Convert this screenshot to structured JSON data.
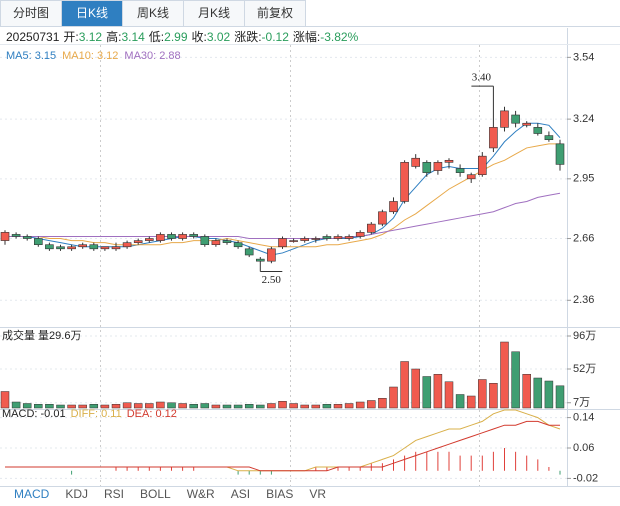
{
  "tabs": [
    "分时图",
    "日K线",
    "周K线",
    "月K线",
    "前复权"
  ],
  "active_tab": 1,
  "quote": {
    "date": "20250731",
    "value_color": "#2a9d5c",
    "fields": [
      {
        "label": "开:",
        "value": "3.12"
      },
      {
        "label": "高:",
        "value": "3.14"
      },
      {
        "label": "低:",
        "value": "2.99"
      },
      {
        "label": "收:",
        "value": "3.02"
      },
      {
        "label": "涨跌:",
        "value": "-0.12"
      },
      {
        "label": "涨幅:",
        "value": "-3.82%"
      }
    ]
  },
  "indicator_tabs": [
    "MACD",
    "KDJ",
    "RSI",
    "BOLL",
    "W&R",
    "ASI",
    "BIAS",
    "VR"
  ],
  "active_indicator": 0,
  "chart_data": [
    {
      "type": "candlestick",
      "up_color": "#f05b4f",
      "down_color": "#3f9e72",
      "ylim": [
        2.24,
        3.6
      ],
      "yticks": [
        3.54,
        3.24,
        2.95,
        2.66,
        2.36
      ],
      "open": [
        2.65,
        2.68,
        2.67,
        2.66,
        2.63,
        2.62,
        2.61,
        2.62,
        2.63,
        2.61,
        2.61,
        2.62,
        2.64,
        2.65,
        2.65,
        2.68,
        2.66,
        2.68,
        2.67,
        2.63,
        2.65,
        2.64,
        2.61,
        2.56,
        2.55,
        2.62,
        2.65,
        2.65,
        2.66,
        2.67,
        2.66,
        2.66,
        2.67,
        2.69,
        2.73,
        2.79,
        2.84,
        3.01,
        3.03,
        2.99,
        3.03,
        3.0,
        2.95,
        2.97,
        3.1,
        3.2,
        3.26,
        3.21,
        3.2,
        3.16,
        3.12
      ],
      "high": [
        2.7,
        2.69,
        2.68,
        2.67,
        2.64,
        2.63,
        2.63,
        2.64,
        2.64,
        2.62,
        2.64,
        2.65,
        2.66,
        2.67,
        2.69,
        2.69,
        2.69,
        2.69,
        2.68,
        2.66,
        2.66,
        2.65,
        2.62,
        2.57,
        2.62,
        2.67,
        2.66,
        2.67,
        2.67,
        2.68,
        2.68,
        2.68,
        2.7,
        2.74,
        2.8,
        2.86,
        3.04,
        3.07,
        3.04,
        3.04,
        3.05,
        3.02,
        2.98,
        3.08,
        3.4,
        3.3,
        3.28,
        3.23,
        3.22,
        3.18,
        3.14
      ],
      "low": [
        2.63,
        2.66,
        2.65,
        2.62,
        2.6,
        2.6,
        2.6,
        2.61,
        2.6,
        2.6,
        2.6,
        2.61,
        2.63,
        2.64,
        2.64,
        2.65,
        2.65,
        2.66,
        2.62,
        2.62,
        2.63,
        2.61,
        2.57,
        2.5,
        2.54,
        2.61,
        2.64,
        2.64,
        2.64,
        2.65,
        2.65,
        2.65,
        2.66,
        2.68,
        2.72,
        2.78,
        2.83,
        3.0,
        2.96,
        2.97,
        3.0,
        2.96,
        2.93,
        2.96,
        3.08,
        3.18,
        3.2,
        3.2,
        3.16,
        3.13,
        2.99
      ],
      "close": [
        2.69,
        2.67,
        2.66,
        2.63,
        2.61,
        2.61,
        2.62,
        2.63,
        2.61,
        2.62,
        2.62,
        2.64,
        2.65,
        2.66,
        2.68,
        2.66,
        2.68,
        2.67,
        2.63,
        2.65,
        2.64,
        2.62,
        2.58,
        2.55,
        2.61,
        2.66,
        2.65,
        2.66,
        2.66,
        2.66,
        2.67,
        2.67,
        2.69,
        2.73,
        2.79,
        2.84,
        3.03,
        3.05,
        2.98,
        3.03,
        3.04,
        2.98,
        2.97,
        3.06,
        3.2,
        3.28,
        3.22,
        3.22,
        3.17,
        3.14,
        3.02
      ],
      "high_labels": [
        null,
        null,
        null,
        null,
        null,
        null,
        null,
        null,
        null,
        null,
        null,
        null,
        null,
        null,
        null,
        null,
        null,
        null,
        null,
        null,
        null,
        null,
        null,
        null,
        null,
        null,
        null,
        null,
        null,
        null,
        null,
        null,
        null,
        null,
        null,
        null,
        null,
        null,
        null,
        null,
        null,
        null,
        null,
        null,
        "3.40",
        null,
        null,
        null,
        null,
        null,
        null
      ],
      "low_labels": [
        null,
        null,
        null,
        null,
        null,
        null,
        null,
        null,
        null,
        null,
        null,
        null,
        null,
        null,
        null,
        null,
        null,
        null,
        null,
        null,
        null,
        null,
        null,
        "2.50",
        null,
        null,
        null,
        null,
        null,
        null,
        null,
        null,
        null,
        null,
        null,
        null,
        null,
        null,
        null,
        null,
        null,
        null,
        null,
        null,
        null,
        null,
        null,
        null,
        null,
        null,
        null
      ],
      "series": [
        {
          "label": "MA5: 3.15",
          "color": "#2f7fc1",
          "values": [
            2.67,
            2.67,
            2.67,
            2.66,
            2.65,
            2.64,
            2.63,
            2.62,
            2.62,
            2.62,
            2.62,
            2.62,
            2.63,
            2.64,
            2.65,
            2.66,
            2.67,
            2.67,
            2.66,
            2.66,
            2.65,
            2.64,
            2.62,
            2.6,
            2.58,
            2.59,
            2.61,
            2.63,
            2.65,
            2.66,
            2.66,
            2.66,
            2.67,
            2.68,
            2.71,
            2.76,
            2.85,
            2.91,
            2.97,
            3.0,
            3.01,
            3.0,
            3.0,
            3.0,
            3.06,
            3.13,
            3.18,
            3.22,
            3.22,
            3.21,
            3.15
          ]
        },
        {
          "label": "MA10: 3.12",
          "color": "#e8a94a",
          "values": [
            2.67,
            2.67,
            2.67,
            2.67,
            2.66,
            2.66,
            2.65,
            2.65,
            2.64,
            2.64,
            2.63,
            2.63,
            2.63,
            2.63,
            2.63,
            2.64,
            2.64,
            2.65,
            2.65,
            2.65,
            2.66,
            2.65,
            2.64,
            2.63,
            2.62,
            2.62,
            2.62,
            2.62,
            2.62,
            2.63,
            2.63,
            2.64,
            2.65,
            2.66,
            2.68,
            2.71,
            2.75,
            2.78,
            2.82,
            2.86,
            2.9,
            2.93,
            2.96,
            2.99,
            3.02,
            3.04,
            3.07,
            3.1,
            3.11,
            3.12,
            3.12
          ]
        },
        {
          "label": "MA30: 2.88",
          "color": "#a070c0",
          "values": [
            2.67,
            2.67,
            2.67,
            2.67,
            2.67,
            2.67,
            2.67,
            2.67,
            2.67,
            2.67,
            2.67,
            2.67,
            2.67,
            2.67,
            2.67,
            2.67,
            2.67,
            2.67,
            2.67,
            2.67,
            2.67,
            2.67,
            2.66,
            2.66,
            2.66,
            2.66,
            2.66,
            2.66,
            2.66,
            2.66,
            2.66,
            2.67,
            2.67,
            2.68,
            2.69,
            2.7,
            2.71,
            2.72,
            2.73,
            2.74,
            2.75,
            2.76,
            2.77,
            2.78,
            2.79,
            2.81,
            2.83,
            2.84,
            2.86,
            2.87,
            2.88
          ]
        }
      ]
    },
    {
      "type": "bar",
      "title": "成交量 量29.6万",
      "ylim": [
        0,
        104
      ],
      "yticks": [
        {
          "value": 96,
          "label": "96万"
        },
        {
          "value": 52,
          "label": "52万"
        },
        {
          "value": 7,
          "label": "7万"
        }
      ],
      "values": [
        22,
        8,
        6,
        5,
        5,
        4,
        4,
        4,
        5,
        4,
        5,
        7,
        6,
        6,
        8,
        7,
        6,
        5,
        6,
        4,
        4,
        4,
        5,
        4,
        6,
        9,
        6,
        4,
        4,
        5,
        5,
        6,
        8,
        10,
        13,
        28,
        62,
        52,
        42,
        45,
        35,
        18,
        16,
        38,
        33,
        88,
        75,
        45,
        40,
        36,
        29.6
      ]
    },
    {
      "type": "macd",
      "ylim": [
        -0.04,
        0.16
      ],
      "yticks": [
        0.14,
        0.06,
        -0.02
      ],
      "up_color": "#e0403a",
      "down_color": "#3f9e72",
      "macd_label": "MACD: -0.01",
      "macd": [
        0,
        0,
        0,
        0,
        0,
        0,
        -0.01,
        0,
        0,
        0,
        0.01,
        0.01,
        0.01,
        0.01,
        0.01,
        0.01,
        0.01,
        0.01,
        0,
        0,
        0,
        -0.01,
        -0.01,
        -0.01,
        -0.01,
        0,
        0,
        0,
        0.01,
        0.01,
        0.01,
        0.01,
        0.01,
        0.02,
        0.02,
        0.03,
        0.04,
        0.05,
        0.05,
        0.05,
        0.05,
        0.04,
        0.04,
        0.04,
        0.05,
        0.06,
        0.05,
        0.04,
        0.03,
        0.01,
        -0.01
      ],
      "series": [
        {
          "label": "DIFF: 0.11",
          "color": "#d9b04a",
          "values": [
            0.01,
            0.01,
            0.01,
            0.01,
            0.01,
            0.01,
            0.01,
            0.01,
            0.01,
            0.01,
            0.01,
            0.01,
            0.01,
            0.01,
            0.01,
            0.01,
            0.01,
            0.01,
            0.01,
            0.01,
            0.01,
            0,
            0,
            0,
            0,
            0,
            0,
            0,
            0.01,
            0.01,
            0.01,
            0.01,
            0.01,
            0.02,
            0.03,
            0.04,
            0.06,
            0.08,
            0.09,
            0.1,
            0.11,
            0.11,
            0.12,
            0.13,
            0.15,
            0.16,
            0.16,
            0.15,
            0.14,
            0.12,
            0.11
          ]
        },
        {
          "label": "DEA: 0.12",
          "color": "#d23a2e",
          "values": [
            0.01,
            0.01,
            0.01,
            0.01,
            0.01,
            0.01,
            0.01,
            0.01,
            0.01,
            0.01,
            0.01,
            0.01,
            0.01,
            0.01,
            0.01,
            0.01,
            0.01,
            0.01,
            0.01,
            0.01,
            0.01,
            0.01,
            0.01,
            0,
            0,
            0,
            0,
            0,
            0,
            0,
            0.01,
            0.01,
            0.01,
            0.01,
            0.01,
            0.02,
            0.03,
            0.04,
            0.05,
            0.06,
            0.07,
            0.08,
            0.09,
            0.1,
            0.11,
            0.12,
            0.12,
            0.13,
            0.13,
            0.12,
            0.12
          ]
        }
      ]
    }
  ]
}
